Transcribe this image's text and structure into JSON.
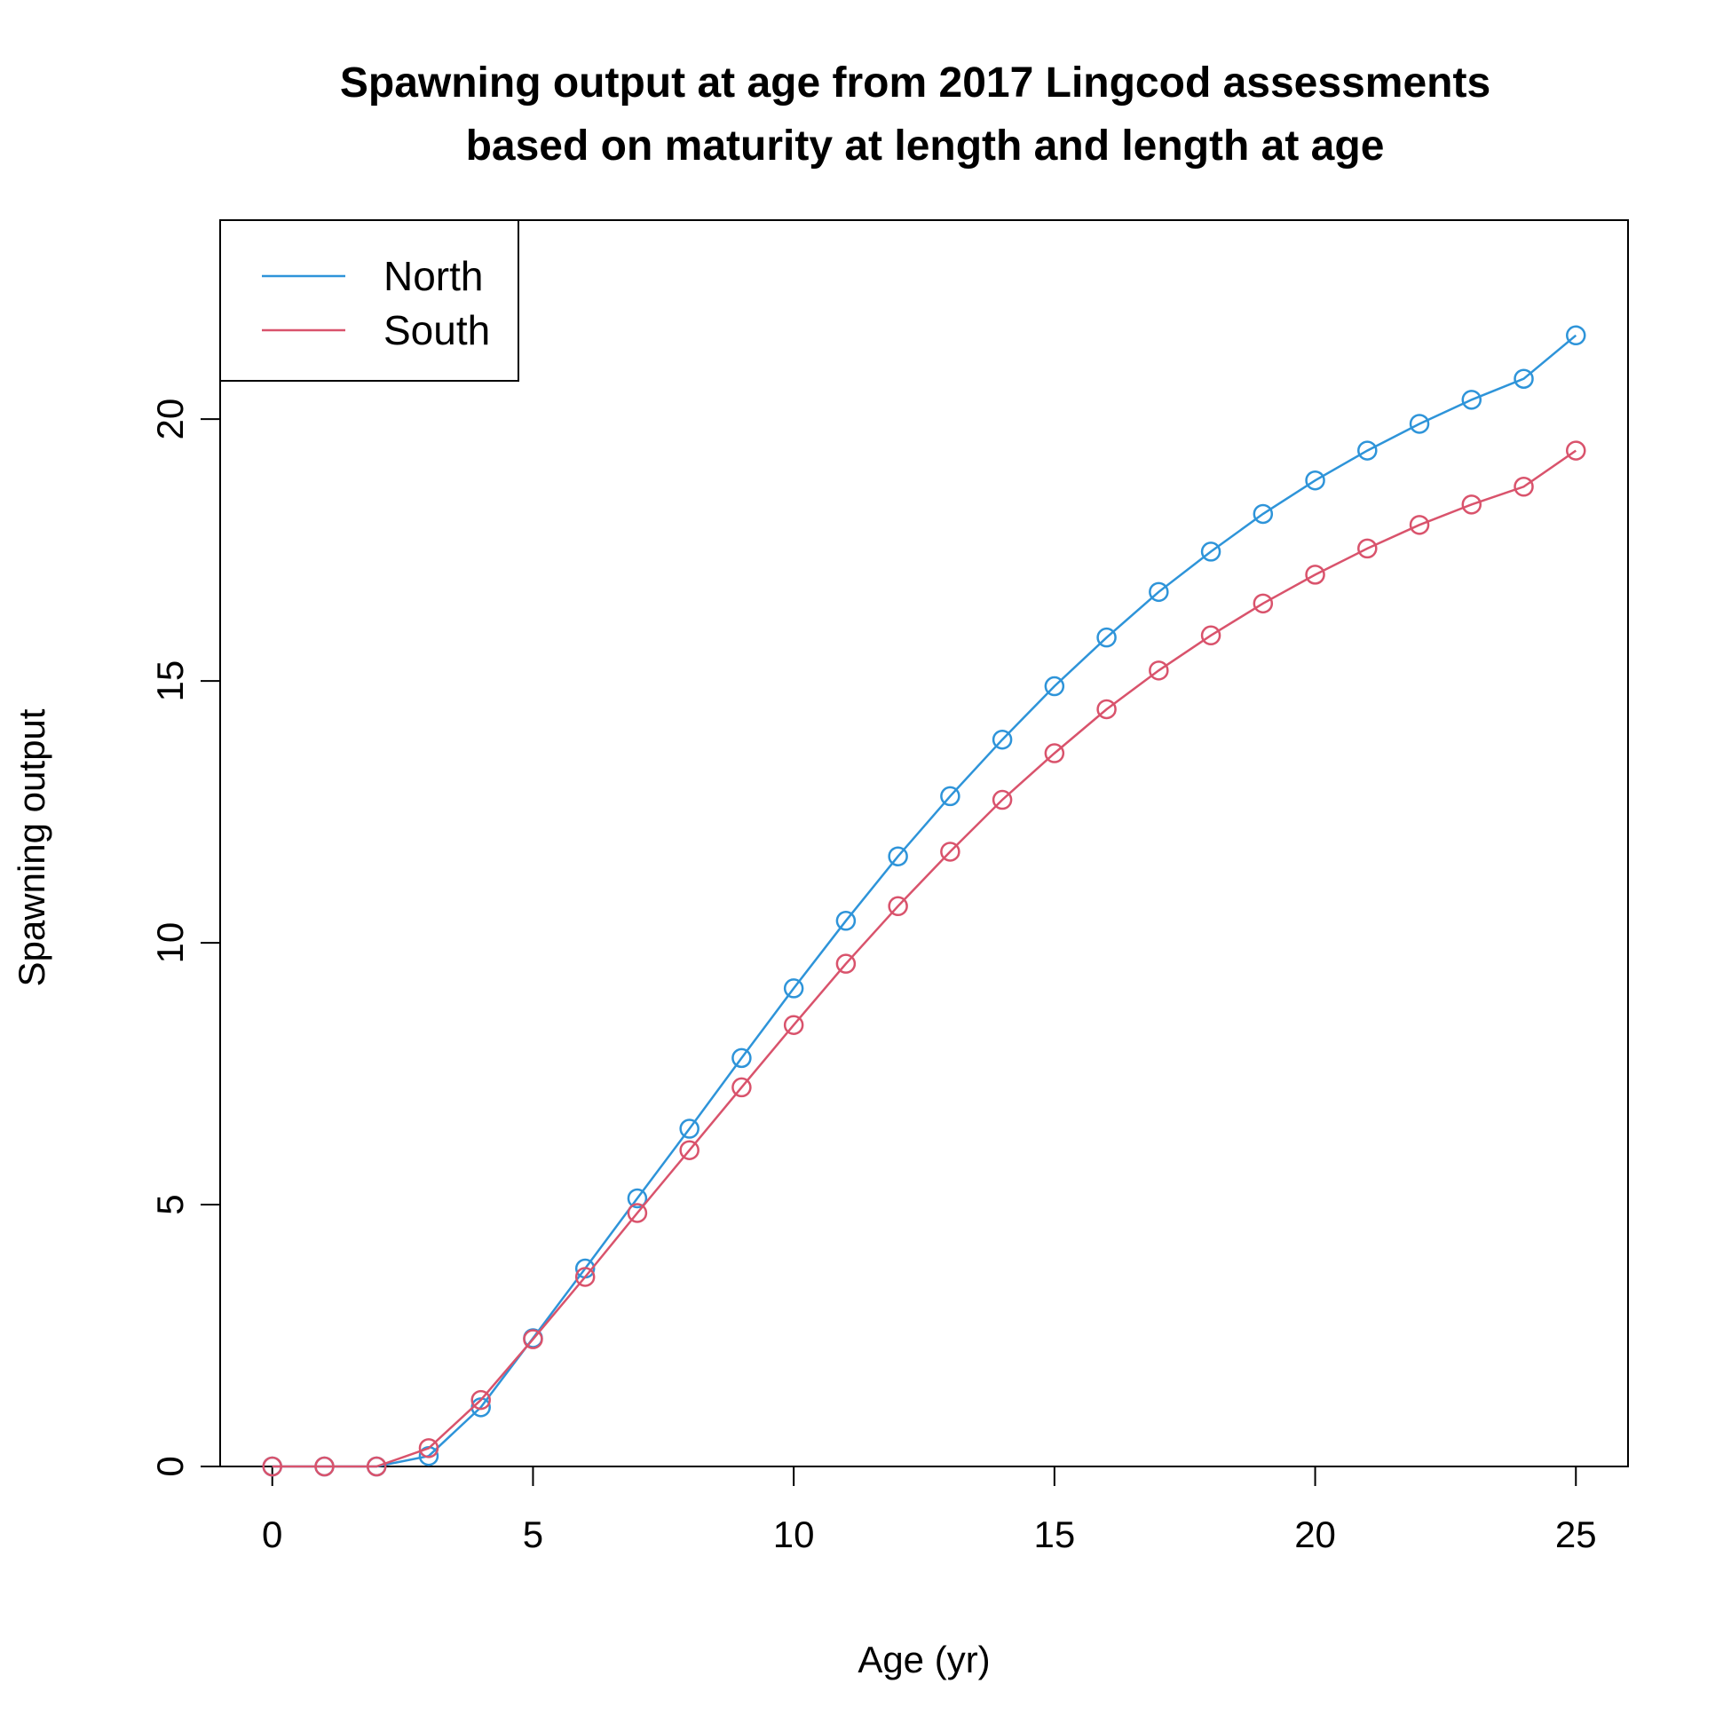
{
  "chart_data": {
    "type": "line",
    "title": "Spawning output at age from 2017 Lingcod assessments",
    "subtitle": "based on maturity at length and length at age",
    "xlabel": "Age (yr)",
    "ylabel": "Spawning output",
    "xlim": [
      -1,
      26
    ],
    "ylim": [
      0,
      23.8
    ],
    "x_ticks": [
      0,
      5,
      10,
      15,
      20,
      25
    ],
    "y_ticks": [
      0,
      5,
      10,
      15,
      20
    ],
    "legend_position": "top-left",
    "grid": false,
    "marker": "open-circle",
    "x": [
      0,
      1,
      2,
      3,
      4,
      5,
      6,
      7,
      8,
      9,
      10,
      11,
      12,
      13,
      14,
      15,
      16,
      17,
      18,
      19,
      20,
      21,
      22,
      23,
      24,
      25
    ],
    "series": [
      {
        "name": "North",
        "color": "#2e94d9",
        "values": [
          0,
          0,
          0,
          0.2,
          1.13,
          2.45,
          3.78,
          5.12,
          6.45,
          7.8,
          9.13,
          10.42,
          11.65,
          12.8,
          13.88,
          14.9,
          15.83,
          16.7,
          17.47,
          18.19,
          18.83,
          19.4,
          19.91,
          20.37,
          20.77,
          21.6
        ]
      },
      {
        "name": "South",
        "color": "#d9536c",
        "values": [
          0,
          0,
          0,
          0.35,
          1.27,
          2.43,
          3.62,
          4.84,
          6.04,
          7.24,
          8.43,
          9.6,
          10.7,
          11.74,
          12.73,
          13.62,
          14.46,
          15.2,
          15.87,
          16.48,
          17.03,
          17.53,
          17.98,
          18.37,
          18.71,
          19.4
        ]
      }
    ]
  }
}
